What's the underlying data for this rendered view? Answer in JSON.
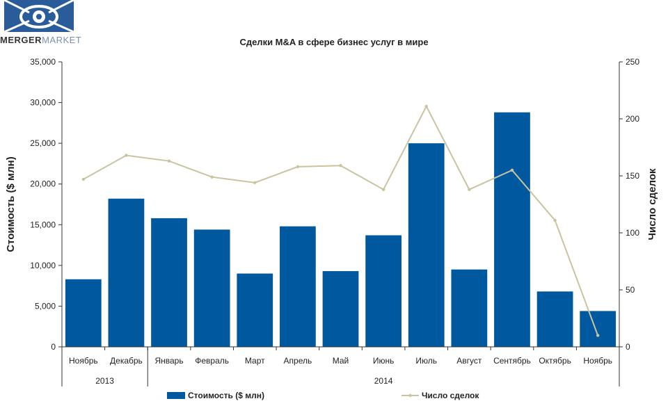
{
  "logo": {
    "part1": "MERGER",
    "part2": "MARKET"
  },
  "chart_data": {
    "type": "bar",
    "title": "Сделки M&A в сфере бизнес услуг в мире",
    "categories": [
      "Ноябрь",
      "Декабрь",
      "Январь",
      "Февраль",
      "Март",
      "Апрель",
      "Май",
      "Июнь",
      "Июль",
      "Август",
      "Сентябрь",
      "Октябрь",
      "Ноябрь"
    ],
    "year_groups": [
      {
        "label": "2013",
        "start": 0,
        "end": 1
      },
      {
        "label": "2014",
        "start": 2,
        "end": 12
      }
    ],
    "ylabel": "Стоимость  ($ млн)",
    "y2label": "Число сделок",
    "ylim": [
      0,
      35000
    ],
    "y2lim": [
      0,
      250
    ],
    "y_ticks": [
      "0",
      "5,000",
      "10,000",
      "15,000",
      "20,000",
      "25,000",
      "30,000",
      "35,000"
    ],
    "y2_ticks": [
      "0",
      "50",
      "100",
      "150",
      "200",
      "250"
    ],
    "series": [
      {
        "name": "Стоимость ($ млн)",
        "kind": "bar",
        "axis": "left",
        "color": "#00599e",
        "values": [
          8300,
          18200,
          15800,
          14400,
          9000,
          14800,
          9300,
          13700,
          25000,
          9500,
          28800,
          6800,
          4400
        ]
      },
      {
        "name": "Число сделок",
        "kind": "line",
        "axis": "right",
        "color": "#c9c3a0",
        "values": [
          147,
          168,
          163,
          149,
          144,
          158,
          159,
          138,
          211,
          138,
          155,
          111,
          10
        ]
      }
    ],
    "legend": "bottom",
    "grid": false
  }
}
